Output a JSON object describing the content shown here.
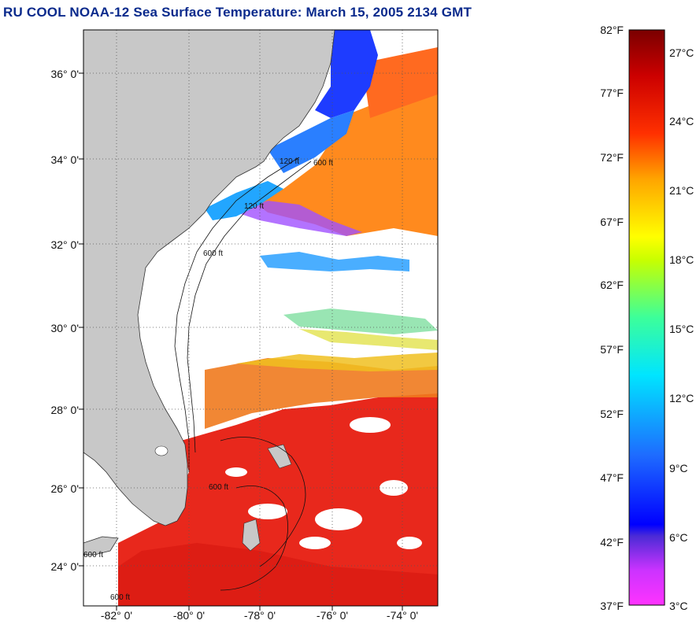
{
  "title": "RU COOL  NOAA-12  Sea Surface Temperature:  March 15, 2005 2134 GMT",
  "map": {
    "lat_labels": [
      "36° 0'",
      "34° 0'",
      "32° 0'",
      "30° 0'",
      "28° 0'",
      "26° 0'",
      "24° 0'"
    ],
    "lon_labels": [
      "-82° 0'",
      "-80° 0'",
      "-78° 0'",
      "-76° 0'",
      "-74° 0'"
    ],
    "contour_labels": [
      "120 ft",
      "600 ft"
    ],
    "colors": {
      "land": "#c8c8c8",
      "cloud": "#ffffff",
      "warm_sst": "#e8281c",
      "cool_sst": "#1e3cff",
      "grid": "#555555"
    }
  },
  "colorbar": {
    "fahrenheit_labels": [
      "82°F",
      "77°F",
      "72°F",
      "67°F",
      "62°F",
      "57°F",
      "52°F",
      "47°F",
      "42°F",
      "37°F"
    ],
    "celsius_labels": [
      "27°C",
      "24°C",
      "21°C",
      "18°C",
      "15°C",
      "12°C",
      "9°C",
      "6°C",
      "3°C"
    ],
    "range_f": [
      37,
      82
    ],
    "range_c": [
      3,
      27
    ],
    "gradient_colors": [
      "#ff33ff",
      "#8a2be2",
      "#0000ff",
      "#1e90ff",
      "#00e5ff",
      "#3cff9a",
      "#ffff00",
      "#ffa500",
      "#ff3000",
      "#cc0000",
      "#7a0000"
    ]
  }
}
